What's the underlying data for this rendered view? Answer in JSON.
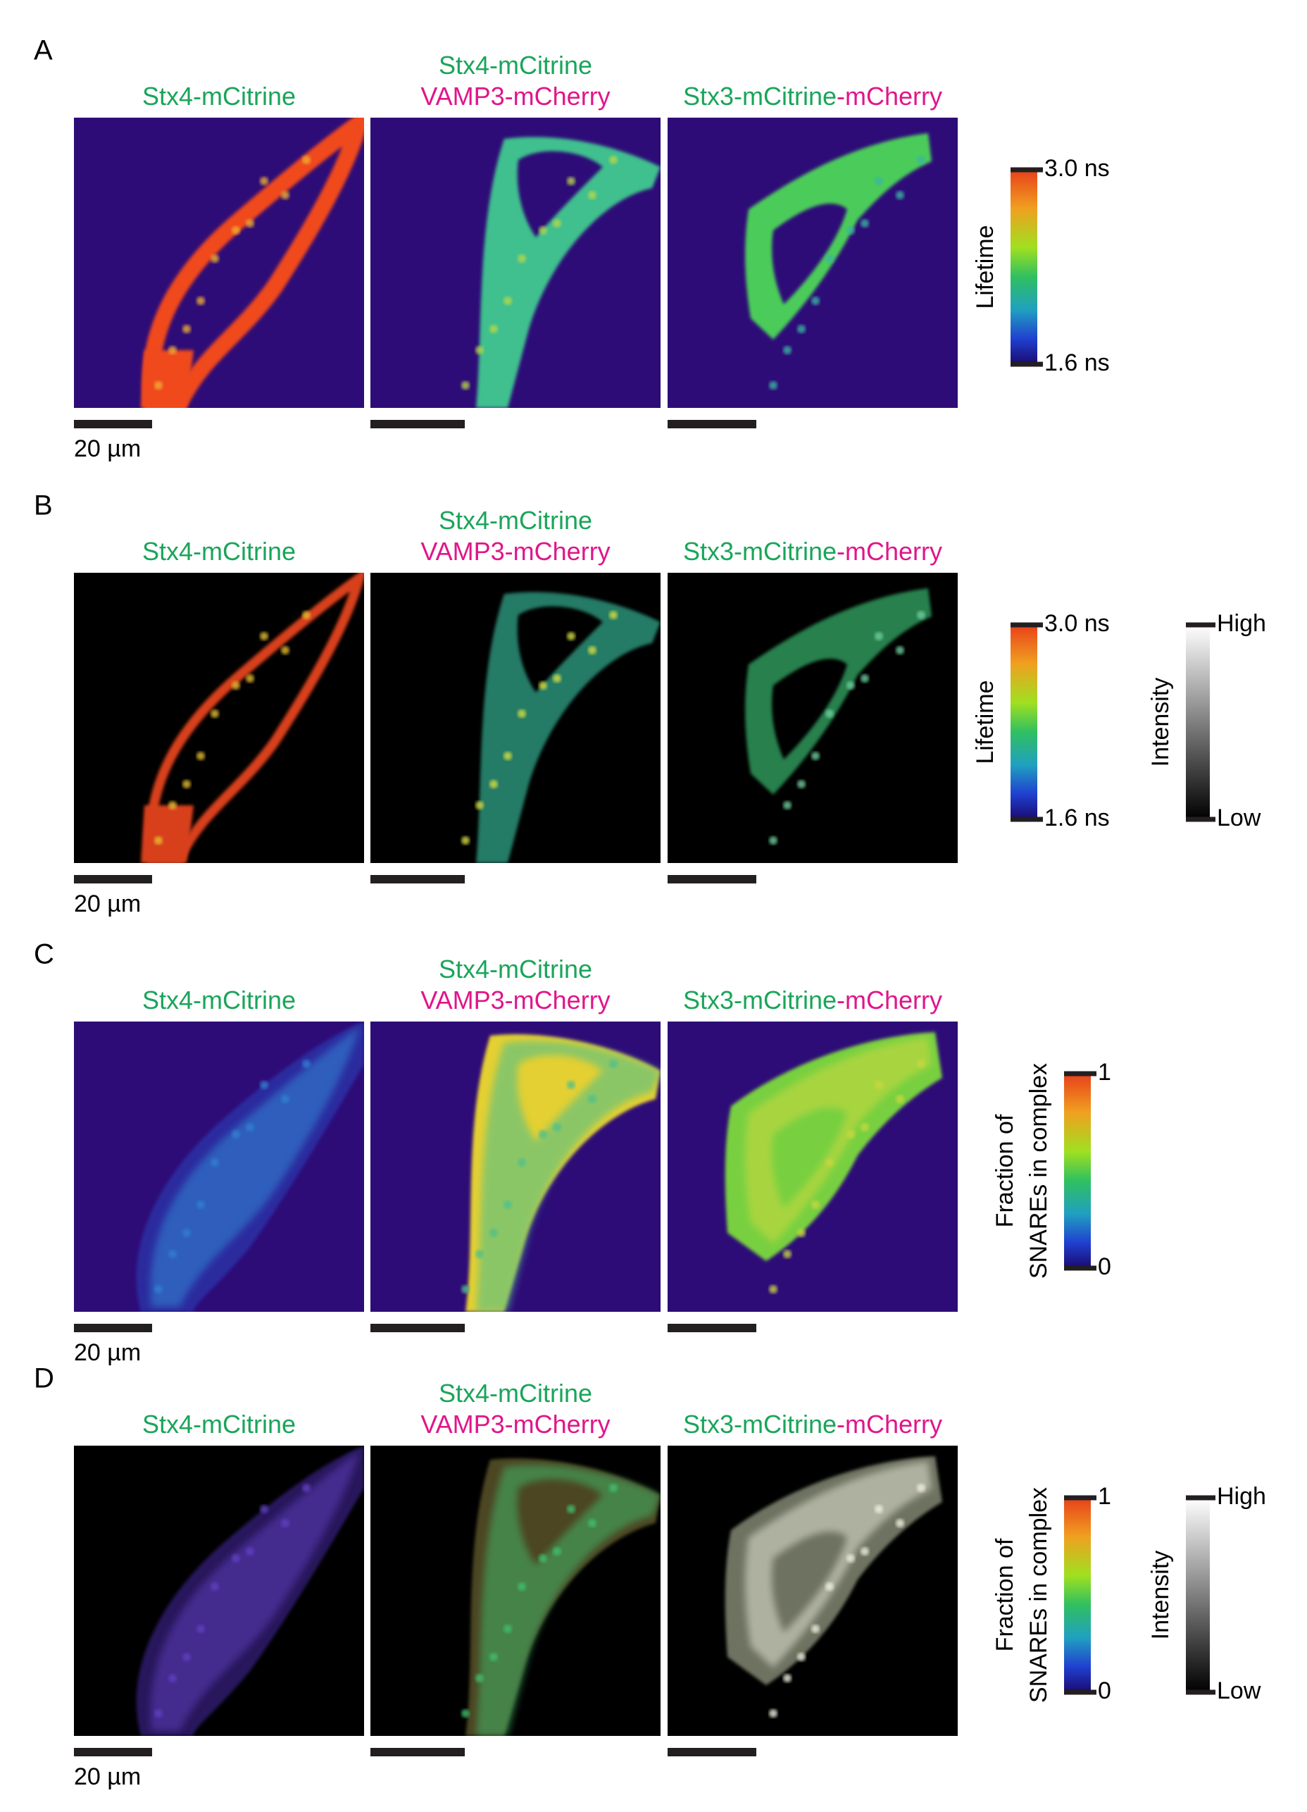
{
  "colors": {
    "green": "#1aa55a",
    "magenta": "#e0168a"
  },
  "rows": [
    {
      "label": "A",
      "background": "#2e0c78",
      "panels": [
        {
          "lines": [
            [
              {
                "text": "Stx4-mCitrine",
                "color": "green"
              }
            ]
          ],
          "cell_color": "#f04a1a",
          "accent": "#f0b030"
        },
        {
          "lines": [
            [
              {
                "text": "Stx4-mCitrine",
                "color": "green"
              }
            ],
            [
              {
                "text": "VAMP3-mCherry",
                "color": "magenta"
              }
            ]
          ],
          "cell_color": "#3fc08e",
          "accent": "#b8d848"
        },
        {
          "lines": [
            [
              {
                "text": "Stx3-mCitrine",
                "color": "green"
              },
              {
                "text": "-mCherry",
                "color": "magenta"
              }
            ]
          ],
          "cell_color": "#4ccc5a",
          "accent": "#38b8a0"
        }
      ],
      "scale_label": "20 µm",
      "colorbars": [
        {
          "kind": "jet",
          "title": [
            "Lifetime"
          ],
          "top": "3.0 ns",
          "bottom": "1.6 ns"
        }
      ]
    },
    {
      "label": "B",
      "background": "#000000",
      "panels": [
        {
          "lines": [
            [
              {
                "text": "Stx4-mCitrine",
                "color": "green"
              }
            ]
          ],
          "cell_color": "#d8401a",
          "accent": "#e8c030"
        },
        {
          "lines": [
            [
              {
                "text": "Stx4-mCitrine",
                "color": "green"
              }
            ],
            [
              {
                "text": "VAMP3-mCherry",
                "color": "magenta"
              }
            ]
          ],
          "cell_color": "#2e9a80",
          "accent": "#d8e040"
        },
        {
          "lines": [
            [
              {
                "text": "Stx3-mCitrine",
                "color": "green"
              },
              {
                "text": "-mCherry",
                "color": "magenta"
              }
            ]
          ],
          "cell_color": "#30a060",
          "accent": "#70d0a0"
        }
      ],
      "scale_label": "20 µm",
      "colorbars": [
        {
          "kind": "jet",
          "title": [
            "Lifetime"
          ],
          "top": "3.0 ns",
          "bottom": "1.6 ns"
        },
        {
          "kind": "gray",
          "title": [
            "Intensity"
          ],
          "top": "High",
          "bottom": "Low"
        }
      ]
    },
    {
      "label": "C",
      "background": "#2e0c78",
      "panels": [
        {
          "lines": [
            [
              {
                "text": "Stx4-mCitrine",
                "color": "green"
              }
            ]
          ],
          "cell_color": "#2a40b8",
          "accent": "#3080d0"
        },
        {
          "lines": [
            [
              {
                "text": "Stx4-mCitrine",
                "color": "green"
              }
            ],
            [
              {
                "text": "VAMP3-mCherry",
                "color": "magenta"
              }
            ]
          ],
          "cell_color": "#e4d030",
          "accent": "#50c08a"
        },
        {
          "lines": [
            [
              {
                "text": "Stx3-mCitrine",
                "color": "green"
              },
              {
                "text": "-mCherry",
                "color": "magenta"
              }
            ]
          ],
          "cell_color": "#78d040",
          "accent": "#c8d840"
        }
      ],
      "scale_label": "20 µm",
      "colorbars": [
        {
          "kind": "jet",
          "title": [
            "Fraction of",
            "SNAREs in complex"
          ],
          "top": "1",
          "bottom": "0"
        }
      ]
    },
    {
      "label": "D",
      "background": "#000000",
      "panels": [
        {
          "lines": [
            [
              {
                "text": "Stx4-mCitrine",
                "color": "green"
              }
            ]
          ],
          "cell_color": "#4a2aa8",
          "accent": "#6040c0"
        },
        {
          "lines": [
            [
              {
                "text": "Stx4-mCitrine",
                "color": "green"
              }
            ],
            [
              {
                "text": "VAMP3-mCherry",
                "color": "magenta"
              }
            ]
          ],
          "cell_color": "#8a8040",
          "accent": "#40c070"
        },
        {
          "lines": [
            [
              {
                "text": "Stx3-mCitrine",
                "color": "green"
              },
              {
                "text": "-mCherry",
                "color": "magenta"
              }
            ]
          ],
          "cell_color": "#c8d0b0",
          "accent": "#f0f0e0"
        }
      ],
      "scale_label": "20 µm",
      "colorbars": [
        {
          "kind": "jet",
          "title": [
            "Fraction of",
            "SNAREs in complex"
          ],
          "top": "1",
          "bottom": "0"
        },
        {
          "kind": "gray",
          "title": [
            "Intensity"
          ],
          "top": "High",
          "bottom": "Low"
        }
      ]
    }
  ]
}
